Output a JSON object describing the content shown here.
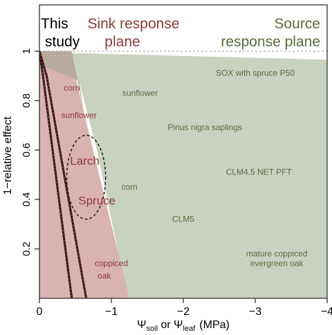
{
  "chart_data": {
    "type": "area",
    "xlabel": {
      "base": "Ψ",
      "sub1": "soil",
      "or": " or ",
      "base2": "Ψ",
      "sub2": "leaf",
      "unit": "(MPa)"
    },
    "ylabel": "1−relative effect",
    "xlim": [
      0,
      -4
    ],
    "ylim": [
      0,
      1.0
    ],
    "x_ticks": [
      {
        "value": 0,
        "label": "0"
      },
      {
        "value": -1,
        "label": "−1"
      },
      {
        "value": -2,
        "label": "−2"
      },
      {
        "value": -3,
        "label": "−3"
      },
      {
        "value": -4,
        "label": "−4"
      }
    ],
    "y_ticks": [
      {
        "value": 0.2,
        "label": "0.2"
      },
      {
        "value": 0.4,
        "label": "0.4"
      },
      {
        "value": 0.6,
        "label": "0.6"
      },
      {
        "value": 0.8,
        "label": "0.8"
      },
      {
        "value": 1.0,
        "label": "1"
      }
    ],
    "headers": {
      "this_study": [
        "This",
        "study"
      ],
      "sink": [
        "Sink response",
        "plane"
      ],
      "source": [
        "Source",
        "response plane"
      ]
    },
    "colors": {
      "sink": "#8b3a3a",
      "sink_fill": "#d9b3b0",
      "source": "#5a6b3a",
      "source_fill": "#c9d1c1",
      "overlap_fill": "#b6ab9e",
      "line_red": "#c0392b",
      "line_black": "#111111"
    },
    "regions": {
      "source_plane": [
        [
          0.45,
          1.0
        ],
        [
          -4.1,
          0.965
        ],
        [
          -4.1,
          0.0
        ],
        [
          -1.22,
          0.0
        ],
        [
          -1.05,
          0.25
        ],
        [
          -0.8,
          0.6
        ],
        [
          -0.55,
          0.88
        ]
      ],
      "sink_plane": [
        [
          0.0,
          1.0
        ],
        [
          -0.45,
          1.0
        ],
        [
          -0.5,
          0.9
        ],
        [
          -0.62,
          0.75
        ],
        [
          -1.25,
          0.0
        ],
        [
          0.0,
          0.0
        ]
      ],
      "overlap": [
        [
          0.45,
          1.0
        ],
        [
          -0.45,
          1.0
        ],
        [
          -0.62,
          0.75
        ],
        [
          -0.55,
          0.88
        ]
      ]
    },
    "study_lines": [
      [
        [
          0.0,
          1.0
        ],
        [
          -0.05,
          0.9
        ],
        [
          -0.45,
          0.0
        ]
      ],
      [
        [
          0.0,
          1.0
        ],
        [
          -0.1,
          0.9
        ],
        [
          -0.65,
          0.0
        ]
      ]
    ],
    "ellipse": {
      "cx": -0.65,
      "cy": 0.49,
      "rx": 0.27,
      "ry": 0.17,
      "label_note": ""
    },
    "sink_labels": [
      {
        "text": "corn",
        "x": -0.45,
        "y": 0.84,
        "size": "small"
      },
      {
        "text": "sunflower",
        "x": -0.55,
        "y": 0.73,
        "size": "small"
      },
      {
        "text": "Larch",
        "x": -0.63,
        "y": 0.54,
        "size": "large"
      },
      {
        "text": "Spruce",
        "x": -0.8,
        "y": 0.38,
        "size": "large"
      },
      {
        "text": "coppiced",
        "x": -1.0,
        "y": 0.13,
        "size": "small"
      },
      {
        "text": "oak",
        "x": -0.9,
        "y": 0.08,
        "size": "small"
      }
    ],
    "source_labels": [
      {
        "text": "sunflower",
        "x": -1.4,
        "y": 0.82
      },
      {
        "text": "Pinus nigra saplings",
        "x": -2.3,
        "y": 0.68
      },
      {
        "text": "corn",
        "x": -1.25,
        "y": 0.44
      },
      {
        "text": "CLM4.5 NET PFT",
        "x": -3.05,
        "y": 0.5
      },
      {
        "text": "CLM5",
        "x": -2.0,
        "y": 0.31
      },
      {
        "text": "SOX with spruce P50",
        "x": -3.0,
        "y": 0.9
      },
      {
        "text": "mature coppiced",
        "x": -3.3,
        "y": 0.17
      },
      {
        "text": "evergreen oak",
        "x": -3.3,
        "y": 0.13
      }
    ]
  }
}
